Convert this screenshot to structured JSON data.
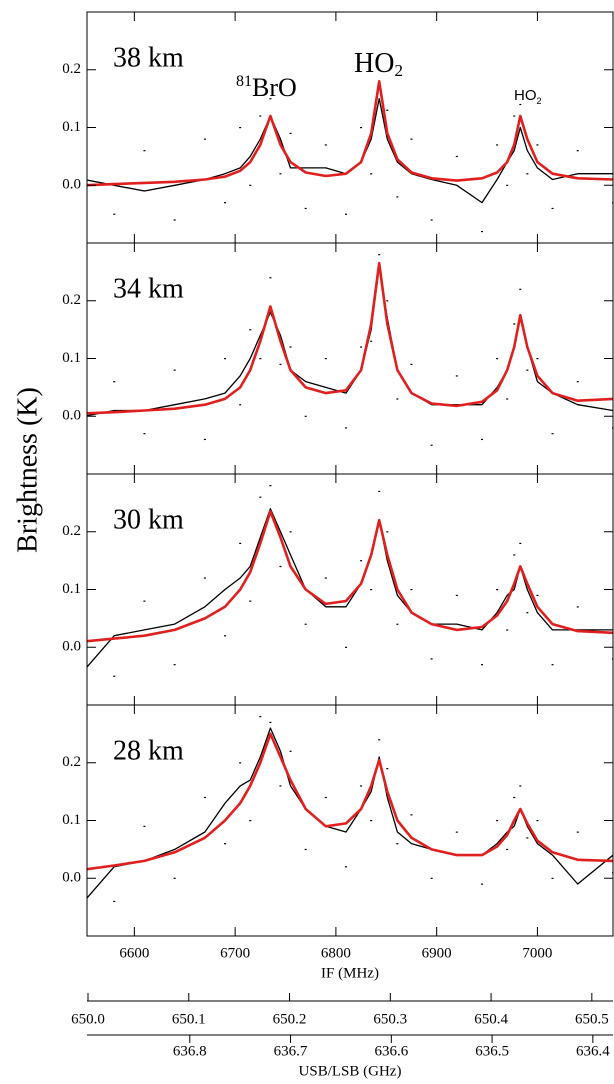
{
  "figure": {
    "ylabel": "Brightness (K)"
  },
  "secondary_axes": [
    {
      "xlim": [
        649.999,
        650.521
      ],
      "xticks": [
        {
          "value": 650,
          "label": "650.0"
        },
        650.1,
        650.2,
        650.3,
        650.4,
        650.5
      ]
    },
    {
      "label": "USB/LSB (GHz)",
      "xlim": [
        636.902,
        636.38
      ],
      "xticks": [
        636.8,
        636.7,
        636.6,
        636.5,
        636.4
      ]
    }
  ],
  "chart_data": [
    {
      "type": "line",
      "label": "38 km",
      "xlim": [
        6553,
        7075
      ],
      "xticks": [
        6600,
        6700,
        6800,
        6900,
        7000
      ],
      "ylim": [
        -0.1,
        0.3
      ],
      "yticks": [
        {
          "value": 0,
          "label": "0.0"
        },
        0.1,
        0.2
      ],
      "annotations": [
        {
          "parts": [
            "81",
            "BrO"
          ]
        },
        {
          "parts": [
            "HO",
            "2"
          ]
        },
        {
          "parts": [
            "HO",
            "2"
          ]
        }
      ],
      "x": [
        6550,
        6580,
        6610,
        6640,
        6670,
        6690,
        6705,
        6715,
        6725,
        6735,
        6745,
        6755,
        6770,
        6790,
        6810,
        6825,
        6835,
        6843,
        6851,
        6861,
        6875,
        6895,
        6920,
        6945,
        6960,
        6970,
        6977,
        6983,
        6990,
        7000,
        7015,
        7040,
        7075
      ],
      "series": [
        {
          "style": "dots",
          "color": "#000000",
          "values": [
            0.05,
            -0.05,
            0.06,
            -0.06,
            0.08,
            -0.03,
            0.1,
            0.0,
            0.12,
            0.15,
            0.02,
            0.09,
            -0.04,
            0.07,
            -0.05,
            0.1,
            0.02,
            0.2,
            0.13,
            -0.02,
            0.08,
            -0.06,
            0.05,
            -0.08,
            0.07,
            0.0,
            0.12,
            0.14,
            0.02,
            0.07,
            -0.04,
            0.06,
            -0.03
          ]
        },
        {
          "style": "line",
          "color": "#000000",
          "values": [
            0.01,
            0.0,
            -0.01,
            0.0,
            0.01,
            0.02,
            0.03,
            0.05,
            0.08,
            0.12,
            0.08,
            0.03,
            0.03,
            0.03,
            0.02,
            0.04,
            0.08,
            0.15,
            0.08,
            0.04,
            0.02,
            0.01,
            0.0,
            -0.03,
            0.01,
            0.04,
            0.06,
            0.1,
            0.06,
            0.03,
            0.01,
            0.02,
            0.02
          ]
        },
        {
          "style": "line",
          "color": "#e0201f",
          "values": [
            0.0,
            0.002,
            0.004,
            0.006,
            0.01,
            0.015,
            0.025,
            0.04,
            0.07,
            0.12,
            0.07,
            0.04,
            0.022,
            0.016,
            0.02,
            0.04,
            0.09,
            0.18,
            0.09,
            0.045,
            0.022,
            0.012,
            0.008,
            0.012,
            0.022,
            0.04,
            0.07,
            0.12,
            0.08,
            0.04,
            0.02,
            0.012,
            0.01
          ]
        }
      ]
    },
    {
      "type": "line",
      "label": "34 km",
      "xlim": [
        6553,
        7075
      ],
      "xticks": [
        6600,
        6700,
        6800,
        6900,
        7000
      ],
      "ylim": [
        -0.1,
        0.3
      ],
      "yticks": [
        {
          "value": 0,
          "label": "0.0"
        },
        0.1,
        0.2
      ],
      "x": [
        6550,
        6580,
        6610,
        6640,
        6670,
        6690,
        6705,
        6715,
        6725,
        6735,
        6745,
        6755,
        6770,
        6790,
        6810,
        6825,
        6835,
        6843,
        6851,
        6861,
        6875,
        6895,
        6920,
        6945,
        6960,
        6970,
        6977,
        6983,
        6990,
        7000,
        7015,
        7040,
        7075
      ],
      "series": [
        {
          "style": "dots",
          "color": "#000000",
          "values": [
            -0.05,
            0.06,
            -0.03,
            0.08,
            -0.04,
            0.1,
            0.02,
            0.15,
            0.1,
            0.24,
            0.09,
            0.12,
            0.0,
            0.1,
            -0.02,
            0.12,
            0.13,
            0.28,
            0.2,
            0.03,
            0.09,
            -0.05,
            0.07,
            -0.04,
            0.1,
            0.03,
            0.16,
            0.22,
            0.08,
            0.1,
            -0.03,
            0.06,
            -0.02
          ]
        },
        {
          "style": "line",
          "color": "#000000",
          "values": [
            0.0,
            0.01,
            0.01,
            0.02,
            0.03,
            0.04,
            0.07,
            0.1,
            0.14,
            0.18,
            0.14,
            0.08,
            0.06,
            0.05,
            0.04,
            0.08,
            0.15,
            0.26,
            0.17,
            0.08,
            0.04,
            0.02,
            0.02,
            0.02,
            0.05,
            0.08,
            0.12,
            0.17,
            0.12,
            0.06,
            0.04,
            0.02,
            0.01
          ]
        },
        {
          "style": "line",
          "color": "#e0201f",
          "values": [
            0.005,
            0.007,
            0.01,
            0.013,
            0.02,
            0.03,
            0.05,
            0.08,
            0.13,
            0.19,
            0.13,
            0.08,
            0.05,
            0.04,
            0.045,
            0.08,
            0.16,
            0.265,
            0.16,
            0.08,
            0.04,
            0.022,
            0.018,
            0.025,
            0.045,
            0.08,
            0.12,
            0.175,
            0.12,
            0.07,
            0.04,
            0.027,
            0.03
          ]
        }
      ]
    },
    {
      "type": "line",
      "label": "30 km",
      "xlim": [
        6553,
        7075
      ],
      "xticks": [
        6600,
        6700,
        6800,
        6900,
        7000
      ],
      "ylim": [
        -0.1,
        0.3
      ],
      "yticks": [
        {
          "value": 0,
          "label": "0.0"
        },
        0.1,
        0.2
      ],
      "x": [
        6550,
        6580,
        6610,
        6640,
        6670,
        6690,
        6705,
        6715,
        6725,
        6735,
        6745,
        6755,
        6770,
        6790,
        6810,
        6825,
        6835,
        6843,
        6851,
        6861,
        6875,
        6895,
        6920,
        6945,
        6960,
        6970,
        6977,
        6983,
        6990,
        7000,
        7015,
        7040,
        7075
      ],
      "series": [
        {
          "style": "dots",
          "color": "#000000",
          "values": [
            0.04,
            -0.05,
            0.08,
            -0.03,
            0.12,
            0.02,
            0.18,
            0.08,
            0.26,
            0.28,
            0.14,
            0.2,
            0.04,
            0.12,
            0.0,
            0.15,
            0.1,
            0.27,
            0.2,
            0.04,
            0.1,
            -0.02,
            0.09,
            -0.03,
            0.1,
            0.03,
            0.16,
            0.18,
            0.06,
            0.09,
            -0.03,
            0.07,
            -0.02
          ]
        },
        {
          "style": "line",
          "color": "#000000",
          "values": [
            -0.04,
            0.02,
            0.03,
            0.04,
            0.07,
            0.1,
            0.12,
            0.14,
            0.19,
            0.24,
            0.2,
            0.16,
            0.1,
            0.07,
            0.07,
            0.11,
            0.16,
            0.22,
            0.15,
            0.09,
            0.06,
            0.04,
            0.04,
            0.03,
            0.06,
            0.09,
            0.1,
            0.14,
            0.1,
            0.06,
            0.03,
            0.03,
            0.03
          ]
        },
        {
          "style": "line",
          "color": "#e0201f",
          "values": [
            0.01,
            0.015,
            0.02,
            0.03,
            0.05,
            0.07,
            0.1,
            0.13,
            0.18,
            0.235,
            0.19,
            0.14,
            0.1,
            0.075,
            0.08,
            0.11,
            0.16,
            0.22,
            0.16,
            0.1,
            0.06,
            0.04,
            0.03,
            0.035,
            0.055,
            0.08,
            0.11,
            0.14,
            0.11,
            0.07,
            0.04,
            0.028,
            0.025
          ]
        }
      ]
    },
    {
      "type": "line",
      "label": "28 km",
      "xlabel": "IF (MHz)",
      "xlim": [
        6553,
        7075
      ],
      "xticks": [
        6600,
        6700,
        6800,
        6900,
        7000
      ],
      "ylim": [
        -0.1,
        0.3
      ],
      "yticks": [
        {
          "value": 0,
          "label": "0.0"
        },
        0.1,
        0.2
      ],
      "x": [
        6550,
        6580,
        6610,
        6640,
        6670,
        6690,
        6705,
        6715,
        6725,
        6735,
        6745,
        6755,
        6770,
        6790,
        6810,
        6825,
        6835,
        6843,
        6851,
        6861,
        6875,
        6895,
        6920,
        6945,
        6960,
        6970,
        6977,
        6983,
        6990,
        7000,
        7015,
        7040,
        7075
      ],
      "series": [
        {
          "style": "dots",
          "color": "#000000",
          "values": [
            0.06,
            -0.04,
            0.09,
            0.0,
            0.14,
            0.06,
            0.2,
            0.1,
            0.28,
            0.27,
            0.16,
            0.22,
            0.05,
            0.14,
            0.02,
            0.16,
            0.1,
            0.24,
            0.19,
            0.06,
            0.11,
            0.0,
            0.08,
            -0.01,
            0.1,
            0.05,
            0.14,
            0.16,
            0.07,
            0.1,
            0.0,
            0.08,
            0.01
          ]
        },
        {
          "style": "line",
          "color": "#000000",
          "values": [
            -0.04,
            0.02,
            0.03,
            0.05,
            0.08,
            0.13,
            0.16,
            0.17,
            0.21,
            0.26,
            0.22,
            0.16,
            0.12,
            0.09,
            0.08,
            0.12,
            0.15,
            0.21,
            0.14,
            0.08,
            0.06,
            0.05,
            0.04,
            0.04,
            0.06,
            0.08,
            0.09,
            0.12,
            0.09,
            0.06,
            0.04,
            -0.01,
            0.04
          ]
        },
        {
          "style": "line",
          "color": "#e0201f",
          "values": [
            0.015,
            0.022,
            0.03,
            0.045,
            0.07,
            0.1,
            0.13,
            0.16,
            0.2,
            0.25,
            0.21,
            0.17,
            0.12,
            0.09,
            0.095,
            0.12,
            0.16,
            0.205,
            0.15,
            0.1,
            0.07,
            0.05,
            0.04,
            0.04,
            0.055,
            0.075,
            0.1,
            0.12,
            0.095,
            0.065,
            0.045,
            0.032,
            0.03
          ]
        }
      ]
    }
  ]
}
